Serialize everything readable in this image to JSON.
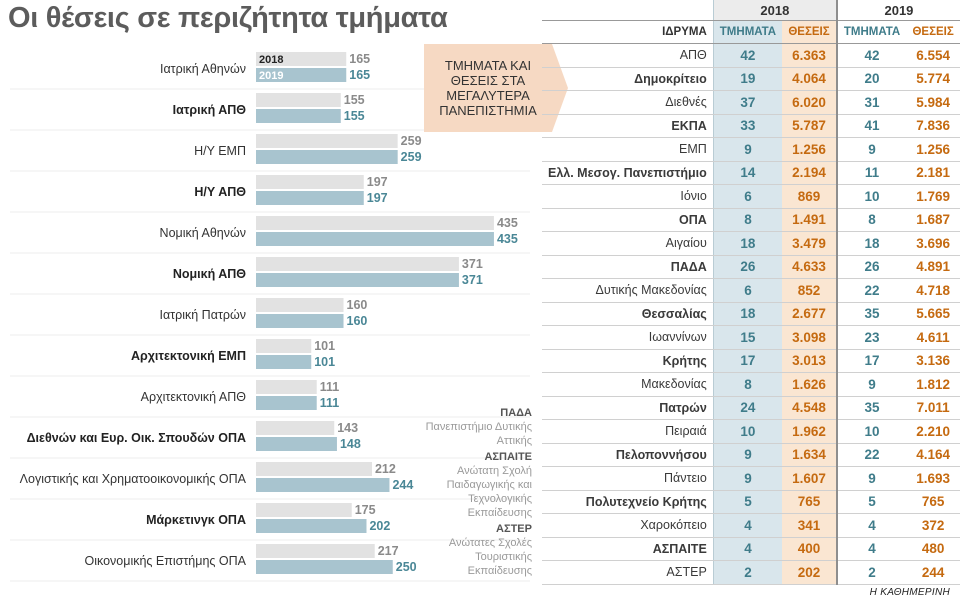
{
  "title": "Οι θέσεις σε περιζήτητα τμήματα",
  "chart_data": {
    "type": "bar",
    "title": "Οι θέσεις σε περιζήτητα τμήματα",
    "orientation": "horizontal",
    "legend": [
      "2018",
      "2019"
    ],
    "legend_position": "inside-first-row",
    "colors": {
      "2018": "#e2e2e2",
      "2019": "#a8c4cf"
    },
    "categories": [
      {
        "label": "Ιατρική Αθηνών",
        "bold": false
      },
      {
        "label": "Ιατρική ΑΠΘ",
        "bold": true
      },
      {
        "label": "Η/Υ ΕΜΠ",
        "bold": false
      },
      {
        "label": "Η/Υ ΑΠΘ",
        "bold": true
      },
      {
        "label": "Νομική Αθηνών",
        "bold": false
      },
      {
        "label": "Νομική ΑΠΘ",
        "bold": true
      },
      {
        "label": "Ιατρική Πατρών",
        "bold": false
      },
      {
        "label": "Αρχιτεκτονική ΕΜΠ",
        "bold": true
      },
      {
        "label": "Αρχιτεκτονική ΑΠΘ",
        "bold": false
      },
      {
        "label": "Διεθνών και Ευρ. Οικ. Σπουδών ΟΠΑ",
        "bold": true
      },
      {
        "label": "Λογιστικής και Χρηματοοικονομικής ΟΠΑ",
        "bold": false
      },
      {
        "label": "Μάρκετινγκ ΟΠΑ",
        "bold": true
      },
      {
        "label": "Οικονομικής Επιστήμης ΟΠΑ",
        "bold": false
      }
    ],
    "series": [
      {
        "name": "2018",
        "values": [
          165,
          155,
          259,
          197,
          435,
          371,
          160,
          101,
          111,
          143,
          212,
          175,
          217
        ]
      },
      {
        "name": "2019",
        "values": [
          165,
          155,
          259,
          197,
          435,
          371,
          160,
          101,
          111,
          148,
          244,
          202,
          250
        ]
      }
    ],
    "xlim": [
      0,
      435
    ],
    "grid": false
  },
  "callout": {
    "text": "ΤΜΗΜΑΤΑ ΚΑΙ ΘΕΣΕΙΣ ΣΤΑ ΜΕΓΑΛΥΤΕΡΑ ΠΑΝΕΠΙΣΤΗΜΙΑ"
  },
  "legend_notes": [
    {
      "abbr": "ΠΑΔΑ",
      "full": "Πανεπιστήμιο Δυτικής Αττικής"
    },
    {
      "abbr": "ΑΣΠΑΙΤΕ",
      "full": "Ανώτατη Σχολή Παιδαγωγικής και Τεχνολογικής Εκπαίδευσης"
    },
    {
      "abbr": "ΑΣΤΕΡ",
      "full": "Ανώτατες Σχολές Τουριστικής Εκπαίδευσης"
    }
  ],
  "table": {
    "years": [
      "2018",
      "2019"
    ],
    "headers": {
      "institution": "ΙΔΡΥΜΑ",
      "departments": "ΤΜΗΜΑΤΑ",
      "positions": "ΘΕΣΕΙΣ"
    },
    "rows": [
      {
        "name": "ΑΠΘ",
        "bold": false,
        "d18": "42",
        "p18": "6.363",
        "d19": "42",
        "p19": "6.554"
      },
      {
        "name": "Δημοκρίτειο",
        "bold": true,
        "d18": "19",
        "p18": "4.064",
        "d19": "20",
        "p19": "5.774"
      },
      {
        "name": "Διεθνές",
        "bold": false,
        "d18": "37",
        "p18": "6.020",
        "d19": "31",
        "p19": "5.984"
      },
      {
        "name": "ΕΚΠΑ",
        "bold": true,
        "d18": "33",
        "p18": "5.787",
        "d19": "41",
        "p19": "7.836"
      },
      {
        "name": "ΕΜΠ",
        "bold": false,
        "d18": "9",
        "p18": "1.256",
        "d19": "9",
        "p19": "1.256"
      },
      {
        "name": "Ελλ. Μεσογ. Πανεπιστήμιο",
        "bold": true,
        "d18": "14",
        "p18": "2.194",
        "d19": "11",
        "p19": "2.181"
      },
      {
        "name": "Ιόνιο",
        "bold": false,
        "d18": "6",
        "p18": "869",
        "d19": "10",
        "p19": "1.769"
      },
      {
        "name": "ΟΠΑ",
        "bold": true,
        "d18": "8",
        "p18": "1.491",
        "d19": "8",
        "p19": "1.687"
      },
      {
        "name": "Αιγαίου",
        "bold": false,
        "d18": "18",
        "p18": "3.479",
        "d19": "18",
        "p19": "3.696"
      },
      {
        "name": "ΠΑΔΑ",
        "bold": true,
        "d18": "26",
        "p18": "4.633",
        "d19": "26",
        "p19": "4.891"
      },
      {
        "name": "Δυτικής Μακεδονίας",
        "bold": false,
        "d18": "6",
        "p18": "852",
        "d19": "22",
        "p19": "4.718"
      },
      {
        "name": "Θεσσαλίας",
        "bold": true,
        "d18": "18",
        "p18": "2.677",
        "d19": "35",
        "p19": "5.665"
      },
      {
        "name": "Ιωαννίνων",
        "bold": false,
        "d18": "15",
        "p18": "3.098",
        "d19": "23",
        "p19": "4.611"
      },
      {
        "name": "Κρήτης",
        "bold": true,
        "d18": "17",
        "p18": "3.013",
        "d19": "17",
        "p19": "3.136"
      },
      {
        "name": "Μακεδονίας",
        "bold": false,
        "d18": "8",
        "p18": "1.626",
        "d19": "9",
        "p19": "1.812"
      },
      {
        "name": "Πατρών",
        "bold": true,
        "d18": "24",
        "p18": "4.548",
        "d19": "35",
        "p19": "7.011"
      },
      {
        "name": "Πειραιά",
        "bold": false,
        "d18": "10",
        "p18": "1.962",
        "d19": "10",
        "p19": "2.210"
      },
      {
        "name": "Πελοποννήσου",
        "bold": true,
        "d18": "9",
        "p18": "1.634",
        "d19": "22",
        "p19": "4.164"
      },
      {
        "name": "Πάντειο",
        "bold": false,
        "d18": "9",
        "p18": "1.607",
        "d19": "9",
        "p19": "1.693"
      },
      {
        "name": "Πολυτεχνείο Κρήτης",
        "bold": true,
        "d18": "5",
        "p18": "765",
        "d19": "5",
        "p19": "765"
      },
      {
        "name": "Χαροκόπειο",
        "bold": false,
        "d18": "4",
        "p18": "341",
        "d19": "4",
        "p19": "372"
      },
      {
        "name": "ΑΣΠΑΙΤΕ",
        "bold": true,
        "d18": "4",
        "p18": "400",
        "d19": "4",
        "p19": "480"
      },
      {
        "name": "ΑΣΤΕΡ",
        "bold": false,
        "d18": "2",
        "p18": "202",
        "d19": "2",
        "p19": "244"
      }
    ]
  },
  "source": "Η ΚΑΘΗΜΕΡΙΝΗ"
}
